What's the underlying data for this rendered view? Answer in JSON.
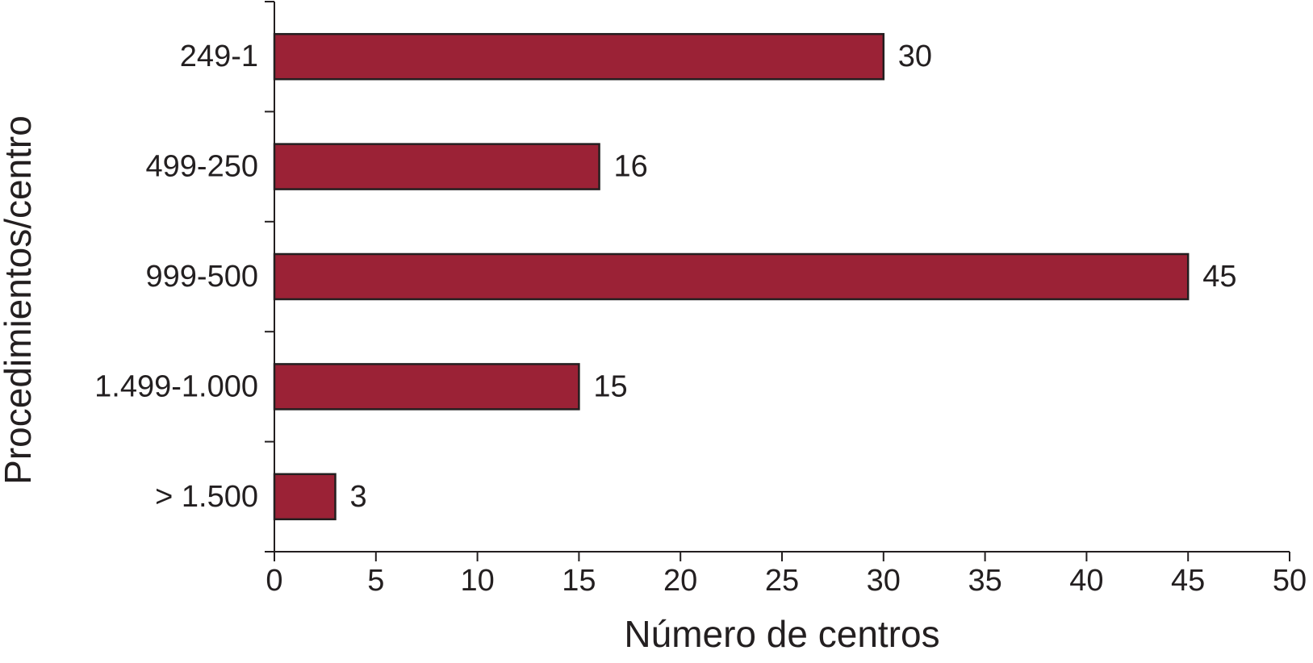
{
  "chart_data": {
    "type": "bar",
    "orientation": "horizontal",
    "categories": [
      "249-1",
      "499-250",
      "999-500",
      "1.499-1.000",
      "> 1.500"
    ],
    "values": [
      30,
      16,
      45,
      15,
      3
    ],
    "color": "#9b2236",
    "xlim": [
      0,
      50
    ],
    "xticks": [
      0,
      5,
      10,
      15,
      20,
      25,
      30,
      35,
      40,
      45,
      50
    ],
    "x_label": "Número de centros",
    "y_label": "Procedimientos/centro"
  }
}
